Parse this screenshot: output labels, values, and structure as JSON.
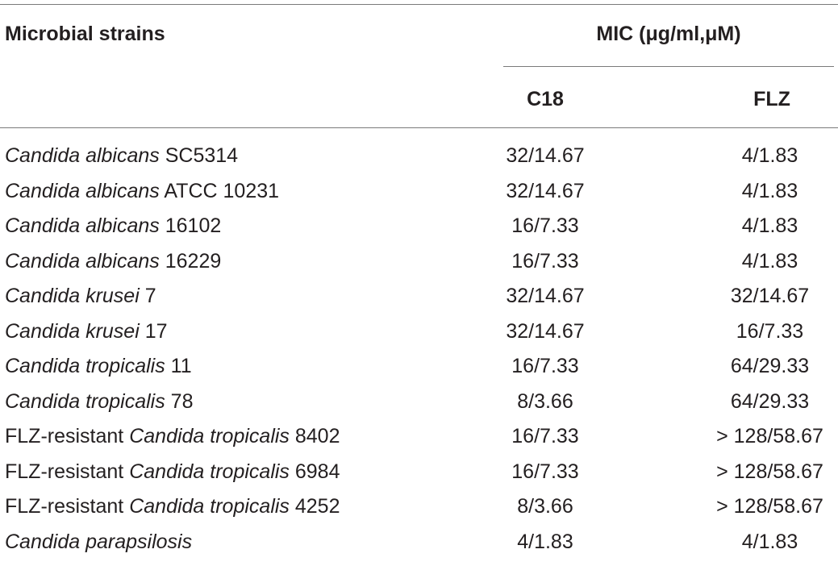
{
  "table": {
    "header": {
      "strain_label": "Microbial strains",
      "mic_label": "MIC (μg/ml,μM)",
      "col_c18": "C18",
      "col_flz": "FLZ"
    },
    "rows": [
      {
        "prefix": "",
        "species": "Candida albicans",
        "suffix": " SC5314",
        "c18": "32/14.67",
        "flz": "4/1.83"
      },
      {
        "prefix": "",
        "species": "Candida albicans",
        "suffix": " ATCC 10231",
        "c18": "32/14.67",
        "flz": "4/1.83"
      },
      {
        "prefix": "",
        "species": "Candida albicans",
        "suffix": " 16102",
        "c18": "16/7.33",
        "flz": "4/1.83"
      },
      {
        "prefix": "",
        "species": "Candida albicans",
        "suffix": " 16229",
        "c18": "16/7.33",
        "flz": "4/1.83"
      },
      {
        "prefix": "",
        "species": "Candida krusei",
        "suffix": " 7",
        "c18": "32/14.67",
        "flz": "32/14.67"
      },
      {
        "prefix": "",
        "species": "Candida krusei",
        "suffix": " 17",
        "c18": "32/14.67",
        "flz": "16/7.33"
      },
      {
        "prefix": "",
        "species": "Candida tropicalis",
        "suffix": " 11",
        "c18": "16/7.33",
        "flz": "64/29.33"
      },
      {
        "prefix": "",
        "species": "Candida tropicalis",
        "suffix": " 78",
        "c18": "8/3.66",
        "flz": "64/29.33"
      },
      {
        "prefix": "FLZ-resistant ",
        "species": "Candida tropicalis",
        "suffix": " 8402",
        "c18": "16/7.33",
        "flz": "> 128/58.67"
      },
      {
        "prefix": "FLZ-resistant ",
        "species": "Candida tropicalis",
        "suffix": " 6984",
        "c18": "16/7.33",
        "flz": "> 128/58.67"
      },
      {
        "prefix": "FLZ-resistant ",
        "species": "Candida tropicalis",
        "suffix": " 4252",
        "c18": "8/3.66",
        "flz": "> 128/58.67"
      },
      {
        "prefix": "",
        "species": "Candida parapsilosis",
        "suffix": "",
        "c18": "4/1.83",
        "flz": "4/1.83"
      }
    ]
  }
}
